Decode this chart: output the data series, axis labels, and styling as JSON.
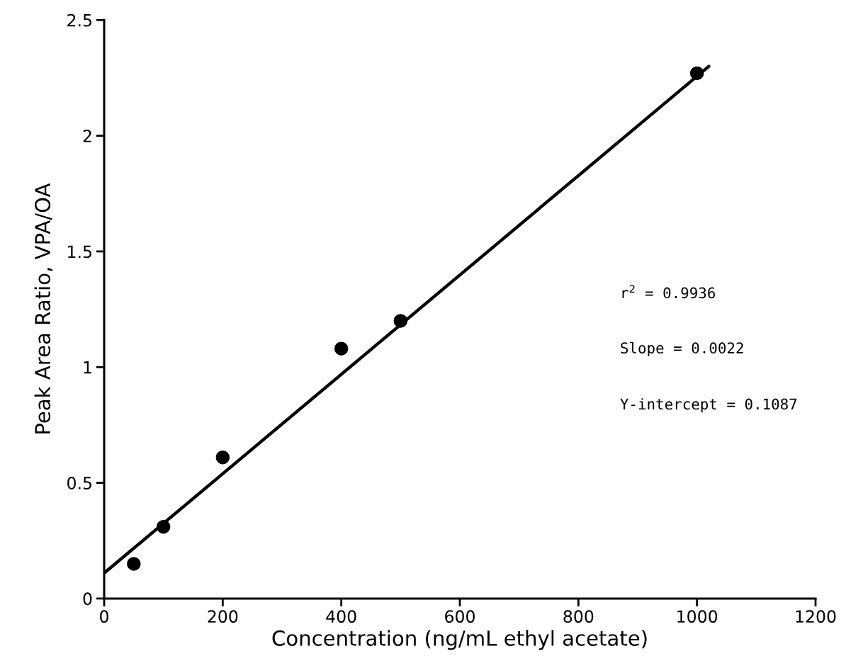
{
  "chart_data": {
    "type": "scatter",
    "xlabel": "Concentration (ng/mL ethyl acetate)",
    "ylabel": "Peak Area Ratio, VPA/OA",
    "xlim": [
      0,
      1200
    ],
    "xticks": [
      0,
      200,
      400,
      600,
      800,
      1000,
      1200
    ],
    "ylim": [
      0,
      2.5
    ],
    "yticks": [
      0,
      0.5,
      1,
      1.5,
      2,
      2.5
    ],
    "grid": false,
    "legend": false,
    "series": [
      {
        "color": "#000000",
        "marker": "circle",
        "x": [
          50,
          100,
          200,
          400,
          500,
          1000
        ],
        "values": [
          0.15,
          0.31,
          0.61,
          1.08,
          1.2,
          2.27
        ]
      },
      {
        "type": "line",
        "color": "#000000",
        "marker": "none",
        "line_style": "solid",
        "x": [
          0,
          1020
        ],
        "values": [
          0.11,
          2.3
        ]
      }
    ],
    "annotations": [
      "r$^{2}$ = 0.9936",
      "Slope = 0.0022",
      "Y-intercept = 0.1087"
    ]
  }
}
